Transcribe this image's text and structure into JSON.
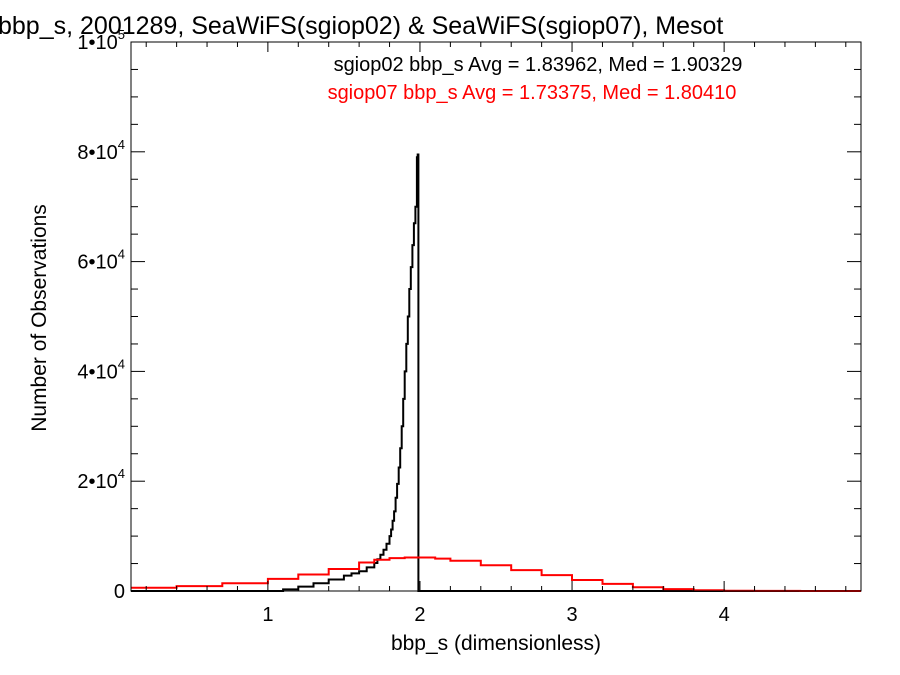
{
  "chart_data": {
    "type": "line",
    "title": "bbp_s, 2001289, SeaWiFS(sgiop02) & SeaWiFS(sgiop07), Mesot",
    "xlabel": "bbp_s (dimensionless)",
    "ylabel": "Number of Observations",
    "xlim": [
      0.1,
      4.9
    ],
    "ylim": [
      0,
      100000
    ],
    "x_ticks": [
      {
        "value": 1,
        "label": "1"
      },
      {
        "value": 2,
        "label": "2"
      },
      {
        "value": 3,
        "label": "3"
      },
      {
        "value": 4,
        "label": "4"
      }
    ],
    "y_ticks": [
      {
        "value": 0,
        "label": "0",
        "exp": ""
      },
      {
        "value": 20000,
        "label": "2•10",
        "exp": "4"
      },
      {
        "value": 40000,
        "label": "4•10",
        "exp": "4"
      },
      {
        "value": 60000,
        "label": "6•10",
        "exp": "4"
      },
      {
        "value": 80000,
        "label": "8•10",
        "exp": "4"
      },
      {
        "value": 100000,
        "label": "1•10",
        "exp": "5"
      }
    ],
    "annotations": [
      {
        "text": "sgiop02 bbp_s Avg = 1.83962, Med = 1.90329",
        "color": "#000000"
      },
      {
        "text": "sgiop07 bbp_s Avg = 1.73375, Med = 1.80410",
        "color": "#ff0000"
      }
    ],
    "series": [
      {
        "color": "#000000",
        "style": "step",
        "x": [
          0.1,
          1.0,
          1.1,
          1.2,
          1.3,
          1.4,
          1.5,
          1.55,
          1.6,
          1.65,
          1.7,
          1.72,
          1.74,
          1.76,
          1.78,
          1.8,
          1.81,
          1.82,
          1.83,
          1.84,
          1.85,
          1.86,
          1.87,
          1.88,
          1.89,
          1.9,
          1.91,
          1.92,
          1.93,
          1.94,
          1.95,
          1.96,
          1.97,
          1.98,
          1.985,
          1.99,
          2.0,
          4.9
        ],
        "y": [
          0,
          0,
          300,
          800,
          1400,
          2100,
          2800,
          3200,
          3600,
          4300,
          5100,
          5800,
          6600,
          7500,
          8600,
          10000,
          11200,
          12800,
          14500,
          17000,
          19500,
          22500,
          26000,
          30000,
          35000,
          40000,
          45000,
          50000,
          55000,
          59000,
          63000,
          67000,
          70000,
          79000,
          79500,
          0,
          0,
          0
        ]
      },
      {
        "color": "#ff0000",
        "style": "step",
        "x": [
          0.1,
          0.4,
          0.7,
          1.0,
          1.2,
          1.4,
          1.6,
          1.7,
          1.8,
          1.9,
          2.0,
          2.1,
          2.2,
          2.4,
          2.6,
          2.8,
          3.0,
          3.2,
          3.4,
          3.6,
          3.8,
          4.0,
          4.2,
          4.5,
          4.9
        ],
        "y": [
          600,
          900,
          1400,
          2200,
          3000,
          4000,
          5200,
          5700,
          6000,
          6100,
          6100,
          5900,
          5500,
          4700,
          3800,
          2900,
          2000,
          1300,
          700,
          350,
          150,
          60,
          20,
          0,
          0
        ]
      }
    ]
  }
}
